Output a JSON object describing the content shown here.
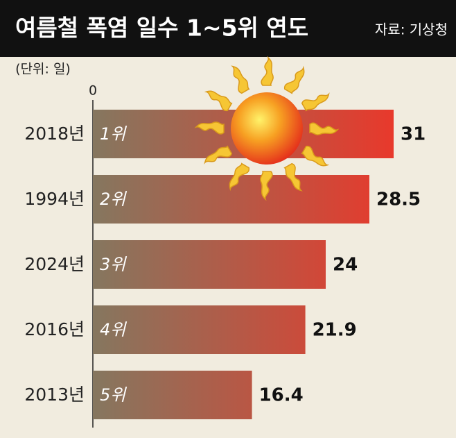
{
  "chart_data": {
    "type": "bar",
    "orientation": "horizontal",
    "title": "여름철 폭염 일수 1~5위 연도",
    "source": "자료: 기상청",
    "unit_label": "(단위: 일)",
    "categories": [
      "2018년",
      "1994년",
      "2024년",
      "2016년",
      "2013년"
    ],
    "rank_labels": [
      "1위",
      "2위",
      "3위",
      "4위",
      "5위"
    ],
    "values": [
      31,
      28.5,
      24,
      21.9,
      16.4
    ],
    "colors": [
      "#85775f",
      "#e8392c"
    ],
    "xlim": [
      0,
      31
    ],
    "xticks": [
      0
    ],
    "grid": false
  }
}
